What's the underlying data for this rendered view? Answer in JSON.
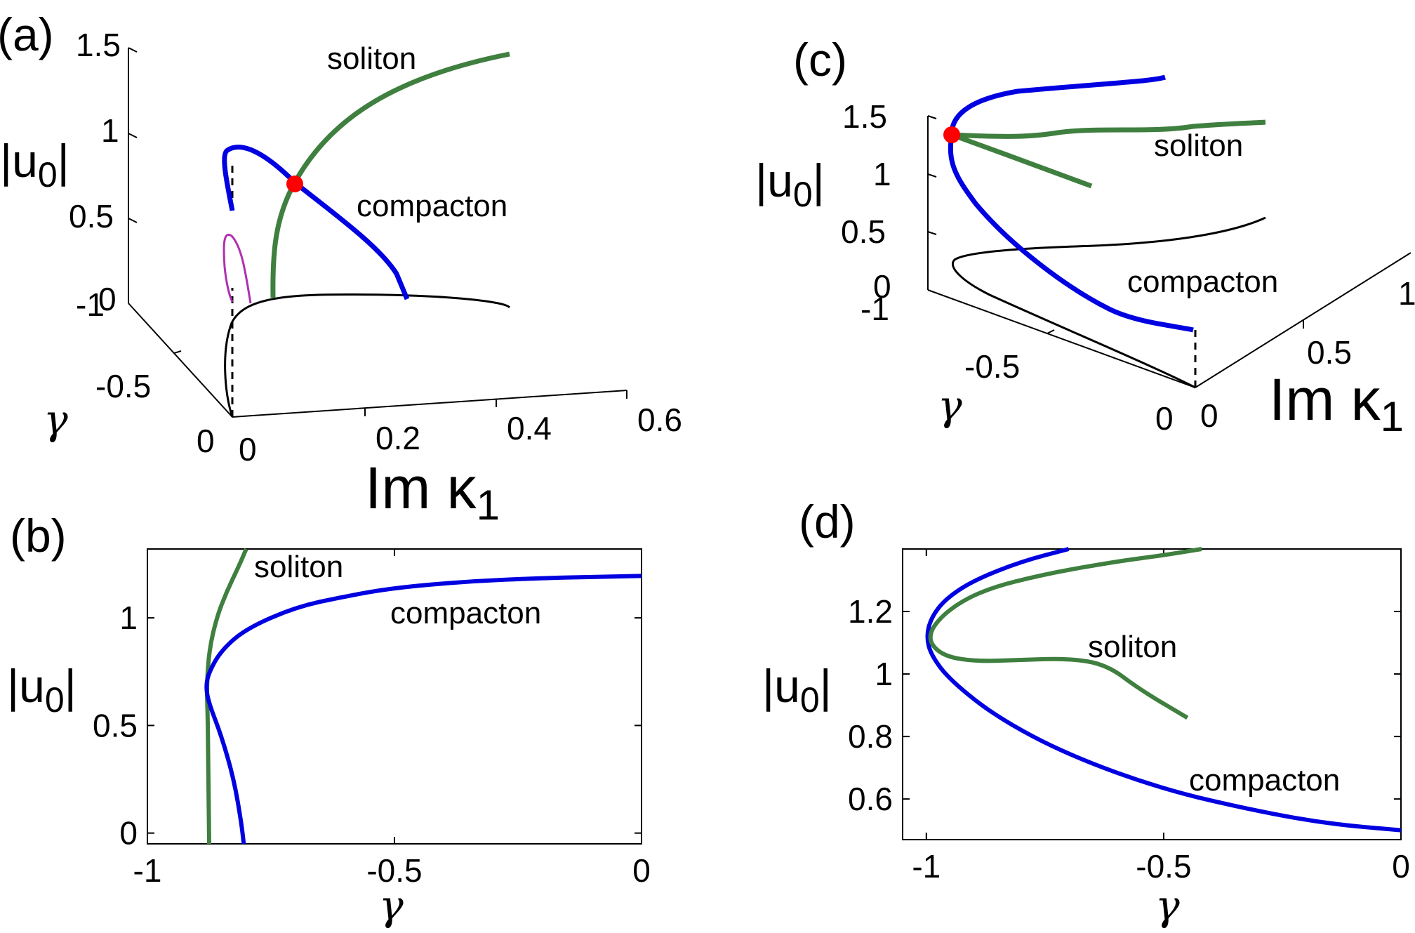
{
  "panel_labels": [
    "(a)",
    "(b)",
    "(c)",
    "(d)"
  ],
  "colors": {
    "soliton": "#3f7f3f",
    "soliton_label": "#22cc22",
    "compacton": "#0000e0",
    "compacton_label": "#0000dd",
    "branch_black": "#000000",
    "branch_magenta": "#b030b0",
    "marker": "#ff0000"
  },
  "chart_data": [
    {
      "id": "a",
      "type": "line3d",
      "ylabel": "|u0|",
      "xlabel": "Im κ1",
      "depth_label": "γ",
      "u_ticks": [
        "1.5",
        "1",
        "0.5",
        "0"
      ],
      "gamma_ticks": [
        "-1",
        "-0.5",
        "0"
      ],
      "kappa_ticks": [
        "0",
        "0.2",
        "0.4",
        "0.6"
      ],
      "series": [
        {
          "name": "soliton",
          "color": "soliton"
        },
        {
          "name": "compacton",
          "color": "compacton"
        }
      ],
      "marker": {
        "label": "intersection"
      }
    },
    {
      "id": "b",
      "type": "line",
      "ylabel": "|u0|",
      "xlabel": "γ",
      "xlim": [
        -1,
        0
      ],
      "ylim": [
        -0.05,
        1.32
      ],
      "xticks": [
        -1,
        -0.5,
        0
      ],
      "xtick_labels": [
        "-1",
        "-0.5",
        "0"
      ],
      "yticks": [
        0,
        0.5,
        1
      ],
      "ytick_labels": [
        "0",
        "0.5",
        "1"
      ],
      "series": [
        {
          "name": "soliton",
          "color": "soliton",
          "x": [
            -0.875,
            -0.876,
            -0.877,
            -0.878,
            -0.88,
            -0.875,
            -0.86,
            -0.84,
            -0.815,
            -0.8
          ],
          "y": [
            -0.05,
            0.15,
            0.35,
            0.55,
            0.68,
            0.85,
            1.0,
            1.12,
            1.24,
            1.32
          ]
        },
        {
          "name": "compacton",
          "color": "compacton",
          "x": [
            -0.805,
            -0.81,
            -0.825,
            -0.85,
            -0.875,
            -0.882,
            -0.875,
            -0.85,
            -0.8,
            -0.7,
            -0.6,
            -0.5,
            -0.35,
            -0.2,
            -0.1,
            0
          ],
          "y": [
            -0.05,
            0.05,
            0.25,
            0.45,
            0.6,
            0.68,
            0.75,
            0.85,
            0.95,
            1.05,
            1.1,
            1.14,
            1.17,
            1.185,
            1.19,
            1.195
          ]
        }
      ]
    },
    {
      "id": "c",
      "type": "line3d",
      "ylabel": "|u0|",
      "xlabel": "Im κ1",
      "depth_label": "γ",
      "u_ticks": [
        "1.5",
        "1",
        "0.5",
        "0"
      ],
      "gamma_ticks": [
        "-1",
        "-0.5",
        "0"
      ],
      "kappa_ticks": [
        "0",
        "0.5",
        "1"
      ],
      "series": [
        {
          "name": "soliton",
          "color": "soliton"
        },
        {
          "name": "compacton",
          "color": "compacton"
        }
      ],
      "marker": {
        "label": "bifurcation"
      }
    },
    {
      "id": "d",
      "type": "line",
      "ylabel": "|u0|",
      "xlabel": "γ",
      "xlim": [
        -1.05,
        0
      ],
      "ylim": [
        0.47,
        1.4
      ],
      "xticks": [
        -1,
        -0.5,
        0
      ],
      "xtick_labels": [
        "-1",
        "-0.5",
        "0"
      ],
      "yticks": [
        0.6,
        0.8,
        1,
        1.2
      ],
      "ytick_labels": [
        "0.6",
        "0.8",
        "1",
        "1.2"
      ],
      "series": [
        {
          "name": "compacton",
          "color": "compacton",
          "x": [
            -0.7,
            -0.8,
            -0.9,
            -0.96,
            -0.99,
            -1.0,
            -0.99,
            -0.95,
            -0.85,
            -0.7,
            -0.5,
            -0.3,
            -0.15,
            0
          ],
          "y": [
            1.4,
            1.36,
            1.3,
            1.24,
            1.18,
            1.12,
            1.06,
            0.98,
            0.86,
            0.74,
            0.63,
            0.56,
            0.52,
            0.5
          ]
        },
        {
          "name": "soliton",
          "color": "soliton",
          "x": [
            -0.42,
            -0.5,
            -0.6,
            -0.75,
            -0.88,
            -0.96,
            -1.0,
            -0.97,
            -0.9,
            -0.8,
            -0.7,
            -0.62,
            -0.55,
            -0.45
          ],
          "y": [
            1.4,
            1.38,
            1.36,
            1.32,
            1.27,
            1.2,
            1.12,
            1.06,
            1.04,
            1.045,
            1.05,
            1.03,
            0.95,
            0.86
          ]
        }
      ]
    }
  ]
}
